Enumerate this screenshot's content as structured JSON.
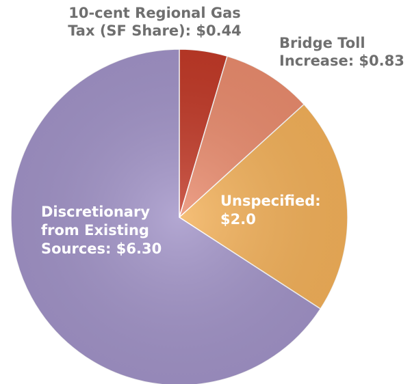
{
  "chart_data": {
    "type": "pie",
    "categories": [
      "10-cent Regional Gas Tax (SF Share)",
      "Bridge Toll Increase",
      "Unspecified",
      "Discretionary from Existing Sources"
    ],
    "values": [
      0.44,
      0.83,
      2.0,
      6.3
    ],
    "colors": [
      "#c23a28",
      "#ea8c6e",
      "#f3b15a",
      "#a294c8"
    ],
    "labels": [
      [
        "10-cent Regional Gas",
        "Tax (SF Share): $0.44"
      ],
      [
        "Bridge Toll",
        "Increase: $0.83"
      ],
      [
        "Unspecified:",
        "$2.0"
      ],
      [
        "Discretionary",
        "from Existing",
        "Sources: $6.30"
      ]
    ]
  }
}
